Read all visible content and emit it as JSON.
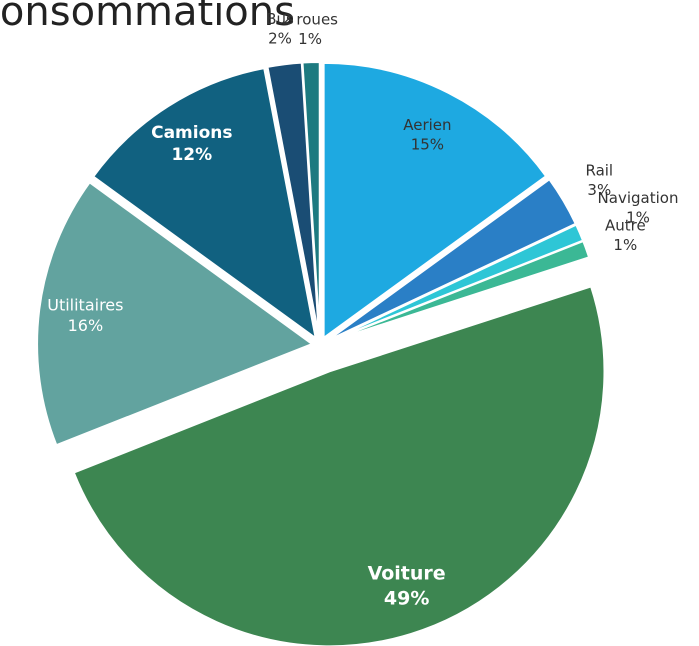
{
  "chart_data": {
    "type": "pie",
    "title": "Consommations",
    "categories": [
      "Aerien",
      "Rail",
      "Navigation",
      "Autre",
      "Voiture",
      "Utilitaires",
      "Camions",
      "Bus",
      "2 roues"
    ],
    "values": [
      15,
      3,
      1,
      1,
      49,
      16,
      12,
      2,
      1
    ],
    "value_labels": [
      "15%",
      "3%",
      "1%",
      "1%",
      "49%",
      "16%",
      "12%",
      "2%",
      "1%"
    ],
    "colors": [
      "#1ea9e1",
      "#2a7fc6",
      "#2ec6d6",
      "#3bb895",
      "#3d8651",
      "#62a39f",
      "#116180",
      "#1a4d74",
      "#1d7a80"
    ]
  }
}
